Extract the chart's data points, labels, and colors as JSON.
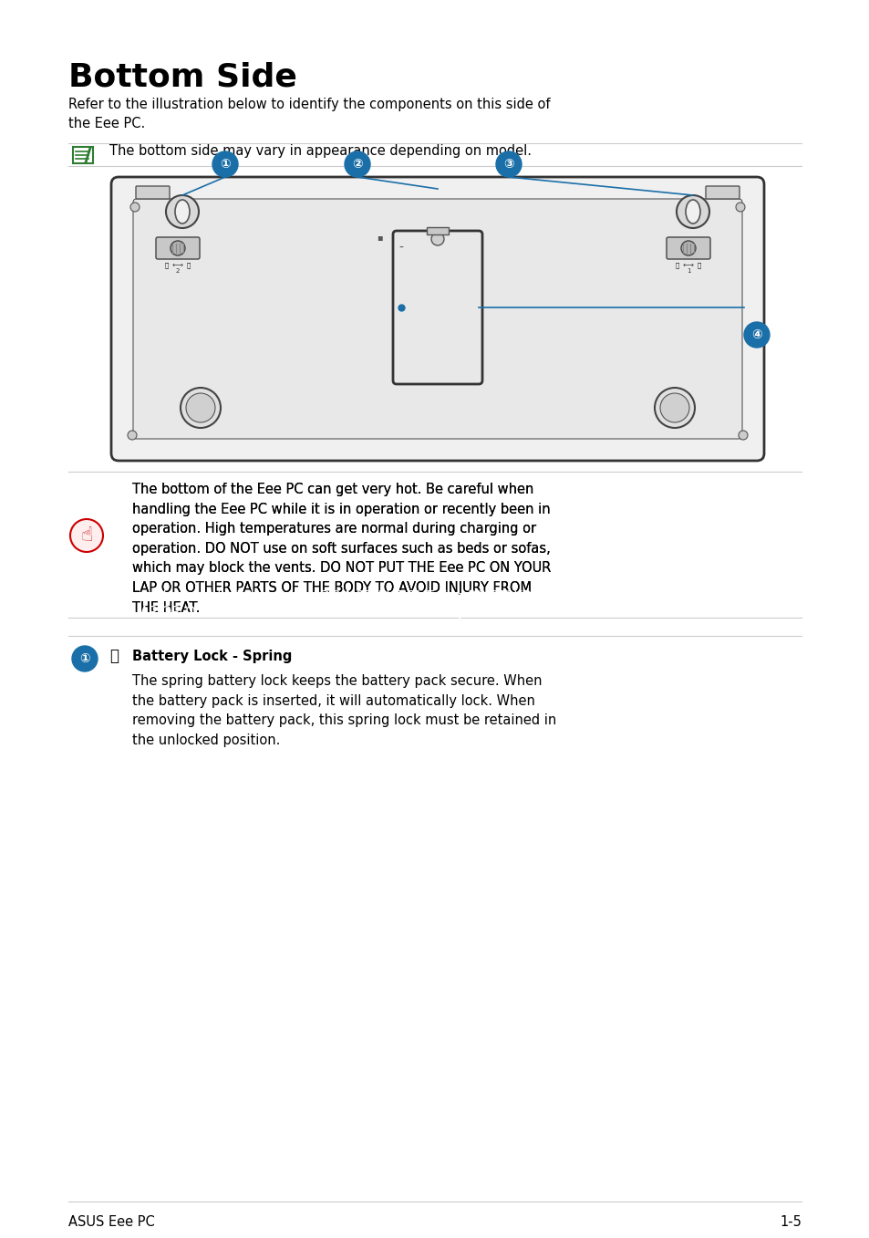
{
  "title": "Bottom Side",
  "subtitle": "Refer to the illustration below to identify the components on this side of\nthe Eee PC.",
  "note_text": "The bottom side may vary in appearance depending on model.",
  "warning_text": "The bottom of the Eee PC can get very hot. Be careful when handling the Eee PC while it is in operation or recently been in operation. High temperatures are normal during charging or operation. DO NOT use on soft surfaces such as beds or sofas, which may block the vents. DO NOT PUT THE Eee PC ON YOUR LAP OR OTHER PARTS OF THE BODY TO AVOID INJURY FROM THE HEAT.",
  "warning_bold_start": "DO NOT PUT THE Eee PC ON YOUR LAP OR OTHER PARTS OF THE BODY TO AVOID INJURY FROM THE HEAT.",
  "section_title": "Battery Lock - Spring",
  "section_text": "The spring battery lock keeps the battery pack secure. When the battery pack is inserted, it will automatically lock. When removing the battery pack, this spring lock must be retained in the unlocked position.",
  "footer_left": "ASUS Eee PC",
  "footer_right": "1-5",
  "bg_color": "#ffffff",
  "text_color": "#000000",
  "blue_color": "#1a6fa8",
  "line_color": "#cccccc",
  "body_font_size": 10.5,
  "title_font_size": 26
}
